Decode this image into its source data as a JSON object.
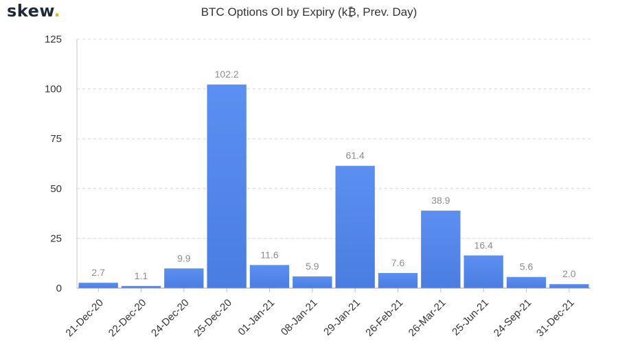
{
  "brand": {
    "name": "skew",
    "dot": "."
  },
  "chart_data": {
    "type": "bar",
    "title": "BTC Options OI by Expiry (k₿, Prev. Day)",
    "xlabel": "",
    "ylabel": "",
    "categories": [
      "21-Dec-20",
      "22-Dec-20",
      "24-Dec-20",
      "25-Dec-20",
      "01-Jan-21",
      "08-Jan-21",
      "29-Jan-21",
      "26-Feb-21",
      "26-Mar-21",
      "25-Jun-21",
      "24-Sep-21",
      "31-Dec-21"
    ],
    "values": [
      2.7,
      1.1,
      9.9,
      102.2,
      11.6,
      5.9,
      61.4,
      7.6,
      38.9,
      16.4,
      5.6,
      2.0
    ],
    "data_labels": [
      "2.7",
      "1.1",
      "9.9",
      "102.2",
      "11.6",
      "5.9",
      "61.4",
      "7.6",
      "38.9",
      "16.4",
      "5.6",
      "2.0"
    ],
    "y_ticks": [
      0,
      25,
      50,
      75,
      100,
      125
    ],
    "ylim": [
      0,
      125
    ],
    "grid": true,
    "bar_color": "#5b8ff0",
    "bar_color_dark": "#4a7de0"
  }
}
